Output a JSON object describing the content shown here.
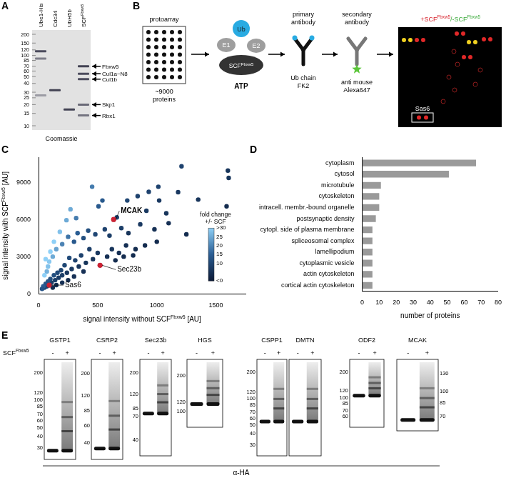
{
  "panel_labels": [
    "A",
    "B",
    "C",
    "D",
    "E"
  ],
  "panel_a": {
    "lanes": [
      "Ube1-His",
      "Cdc34",
      "UbH5b",
      {
        "text": "SCF",
        "sup": "Fbxw5"
      }
    ],
    "markers": [
      200,
      150,
      120,
      100,
      85,
      70,
      60,
      50,
      40,
      30,
      25,
      20,
      15,
      10
    ],
    "bands": [
      "Fbxw5",
      "Cul1a~N8",
      "Cul1b",
      "Skp1",
      "Rbx1"
    ],
    "stain": "Coomassie"
  },
  "panel_b": {
    "array": "protoarray",
    "array_count": [
      "~9000",
      "proteins"
    ],
    "ub": "Ub",
    "e1": "E1",
    "e2": "E2",
    "ligase": {
      "text": "SCF",
      "sup": "Fbxw5"
    },
    "atp": "ATP",
    "primary": [
      "primary",
      "antibody"
    ],
    "primary_target": [
      "Ub chain",
      "FK2"
    ],
    "secondary": [
      "secondary",
      "antibody"
    ],
    "secondary_target": [
      "anti mouse",
      "Alexa647"
    ],
    "result_plus": {
      "text": "+SCF",
      "sup": "Fbxw5"
    },
    "result_minus": {
      "text": "/-SCF",
      "sup": "Fbxw5"
    },
    "highlight": "Sas6"
  },
  "chart_data": [
    {
      "type": "scatter",
      "x_label": {
        "text": "signal intensity without SCF",
        "sup": "Fbxw5",
        "after": " [AU]"
      },
      "y_label": {
        "text": "signal intensity with SCF",
        "sup": "Fbxw5",
        "after": " [AU]"
      },
      "x": [
        1601,
        1608,
        1209,
        1590,
        1013,
        932,
        1020,
        838,
        912,
        750,
        662,
        635,
        453,
        540,
        507,
        270,
        236,
        318,
        1100,
        980,
        860,
        760,
        700,
        600,
        560,
        480,
        420,
        380,
        330,
        300,
        250,
        200,
        180,
        150,
        130,
        120,
        100,
        90,
        80,
        70,
        60,
        50,
        1250,
        1000,
        900,
        820,
        740,
        680,
        620,
        580,
        520,
        500,
        460,
        430,
        400,
        360,
        340,
        310,
        280,
        260,
        240,
        220,
        200,
        190,
        170,
        160,
        140,
        130,
        110,
        100,
        90,
        80,
        70,
        60,
        50,
        40,
        30,
        650,
        720,
        800,
        380,
        300,
        250,
        200,
        150,
        120,
        1180,
        1350,
        1080
      ],
      "values": [
        9940,
        9350,
        10290,
        7060,
        8640,
        8230,
        7530,
        7880,
        6700,
        7530,
        6170,
        6000,
        8640,
        7530,
        7060,
        6820,
        5940,
        6110,
        5700,
        5200,
        5600,
        4900,
        5300,
        4700,
        5200,
        4800,
        5100,
        4500,
        4900,
        4200,
        4600,
        4000,
        5000,
        3600,
        4200,
        3000,
        3400,
        2600,
        2200,
        1800,
        2800,
        1500,
        4800,
        4200,
        3900,
        3600,
        3900,
        3300,
        3600,
        3000,
        2300,
        3300,
        2800,
        3600,
        2500,
        3100,
        2200,
        2700,
        2000,
        2900,
        1700,
        2300,
        1500,
        1900,
        1300,
        1700,
        1100,
        1500,
        900,
        1200,
        700,
        1000,
        600,
        800,
        500,
        600,
        400,
        2700,
        3000,
        3100,
        1800,
        1400,
        1100,
        900,
        700,
        500,
        8200,
        7600,
        6500
      ],
      "fold_change": [
        6,
        6,
        9,
        4,
        9,
        9,
        7,
        9,
        7,
        10,
        9,
        9,
        19,
        14,
        14,
        25,
        25,
        19,
        5,
        5,
        7,
        6,
        8,
        8,
        9,
        10,
        12,
        12,
        15,
        14,
        18,
        20,
        28,
        24,
        32,
        25,
        34,
        29,
        28,
        26,
        35,
        30,
        4,
        4,
        4,
        4,
        5,
        5,
        6,
        5,
        4,
        7,
        6,
        8,
        6,
        9,
        6,
        9,
        7,
        11,
        7,
        10,
        8,
        10,
        8,
        11,
        8,
        12,
        8,
        12,
        8,
        13,
        9,
        13,
        10,
        15,
        13,
        4,
        4,
        4,
        5,
        5,
        4,
        5,
        5,
        4,
        7,
        6,
        6
      ],
      "xlim": [
        0,
        1750
      ],
      "xticks": [
        0,
        500,
        1000,
        1500
      ],
      "ylim": [
        0,
        11000
      ],
      "yticks": [
        0,
        3000,
        6000,
        9000
      ],
      "grid": false,
      "colorbar": {
        "title": [
          "fold change",
          "+/- SCF"
        ],
        "range": [
          0,
          30
        ],
        "ticks": [
          {
            "value": 30,
            "label": ">30"
          },
          25,
          20,
          15,
          10,
          {
            "value": 0,
            "label": "<0"
          }
        ]
      },
      "annotations": [
        {
          "text": "MCAK",
          "x": 635,
          "y": 6000,
          "color": "#cc2233"
        },
        {
          "text": "Sec23b",
          "x": 520,
          "y": 2300,
          "color": "#cc2233"
        },
        {
          "text": "Sas6",
          "x": 90,
          "y": 700,
          "color": "#cc2233"
        }
      ]
    },
    {
      "type": "bar",
      "orientation": "horizontal",
      "categories": [
        "cytoplasm",
        "cytosol",
        "microtubule",
        "cytoskeleton",
        "intracell. membr.-bound organelle",
        "postsynaptic density",
        "cytopl. side of plasma membrane",
        "spliceosomal complex",
        "lamellipodium",
        "cytoplasmic vesicle",
        "actin cytoskeleton",
        "cortical actin cytoskeleton"
      ],
      "values": [
        67,
        51,
        11,
        10,
        10,
        8,
        6,
        6,
        6,
        6,
        6,
        6
      ],
      "color": "#9a9a9a",
      "x_label": "number of proteins",
      "xlim": [
        0,
        80
      ],
      "xticks": [
        0,
        10,
        20,
        30,
        40,
        50,
        60,
        70,
        80
      ],
      "grid": false
    }
  ],
  "panel_e": {
    "enzyme": {
      "text": "SCF",
      "sup": "Fbxw5"
    },
    "lanes": [
      "-",
      "+"
    ],
    "antibody": "α-HA",
    "blots": [
      {
        "name": "GSTP1",
        "markers": [
          200,
          120,
          100,
          85,
          70,
          60,
          50,
          40,
          30
        ]
      },
      {
        "name": "CSRP2",
        "markers": [
          200,
          120,
          85,
          60,
          40
        ]
      },
      {
        "name": "Sec23b",
        "markers": [
          200,
          120,
          85,
          70,
          40
        ]
      },
      {
        "name": "HGS",
        "markers": [
          200,
          120,
          100
        ]
      },
      {
        "name": "CSPP1",
        "markers": [
          200,
          120,
          100,
          85,
          70,
          60,
          50,
          40,
          30
        ]
      },
      {
        "name": "DMTN",
        "markers": []
      },
      {
        "name": "ODF2",
        "markers": [
          200,
          120,
          100,
          85,
          70,
          60
        ]
      },
      {
        "name": "MCAK",
        "markers": [
          130,
          100,
          85,
          70
        ]
      }
    ]
  }
}
